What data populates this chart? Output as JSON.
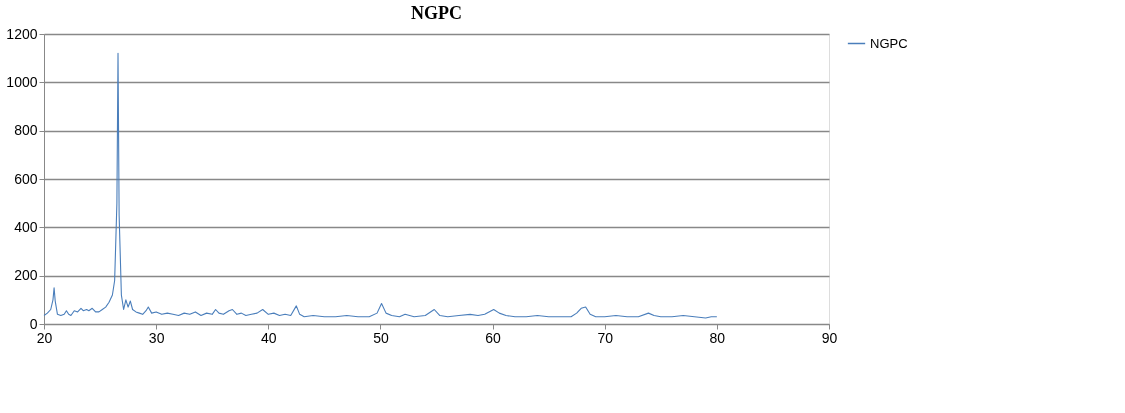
{
  "chart_data": {
    "type": "line",
    "title": "NGPC",
    "series": [
      {
        "name": "NGPC",
        "color": "#4a7ebb",
        "x": [
          20,
          20.3,
          20.6,
          20.8,
          20.9,
          21.0,
          21.2,
          21.5,
          21.8,
          22.0,
          22.2,
          22.4,
          22.7,
          23.0,
          23.3,
          23.5,
          23.8,
          24.0,
          24.3,
          24.6,
          24.9,
          25.2,
          25.5,
          25.8,
          26.1,
          26.3,
          26.5,
          26.6,
          26.7,
          26.9,
          27.1,
          27.3,
          27.5,
          27.7,
          27.9,
          28.2,
          28.5,
          28.8,
          29.1,
          29.3,
          29.6,
          30.0,
          30.5,
          31.0,
          31.5,
          32.0,
          32.5,
          33.0,
          33.5,
          34.0,
          34.5,
          35.0,
          35.3,
          35.6,
          36.0,
          36.5,
          36.8,
          37.2,
          37.6,
          38.0,
          38.5,
          39.0,
          39.5,
          40.0,
          40.5,
          41.0,
          41.5,
          42.0,
          42.5,
          42.8,
          43.2,
          44.0,
          45.0,
          46.0,
          47.0,
          48.0,
          49.0,
          49.7,
          50.1,
          50.5,
          51.0,
          51.7,
          52.2,
          53.0,
          54.0,
          54.8,
          55.3,
          56.0,
          57.0,
          58.0,
          58.7,
          59.3,
          60.1,
          60.6,
          61.2,
          62.0,
          63.0,
          64.0,
          65.0,
          66.0,
          67.0,
          67.5,
          67.9,
          68.3,
          68.7,
          69.2,
          70.0,
          71.0,
          72.0,
          73.0,
          73.9,
          74.4,
          75.0,
          76.0,
          77.0,
          78.0,
          79.0,
          79.5,
          80.0
        ],
        "values": [
          35,
          45,
          60,
          100,
          150,
          95,
          40,
          35,
          40,
          55,
          40,
          35,
          55,
          50,
          65,
          55,
          60,
          55,
          65,
          50,
          50,
          60,
          70,
          90,
          120,
          180,
          500,
          1120,
          450,
          120,
          60,
          100,
          70,
          95,
          60,
          50,
          45,
          40,
          55,
          70,
          45,
          50,
          40,
          45,
          40,
          35,
          45,
          40,
          50,
          35,
          45,
          40,
          60,
          45,
          40,
          55,
          60,
          40,
          45,
          35,
          40,
          45,
          60,
          40,
          45,
          35,
          40,
          35,
          75,
          40,
          30,
          35,
          30,
          30,
          35,
          30,
          30,
          45,
          85,
          45,
          35,
          30,
          40,
          30,
          35,
          60,
          35,
          30,
          35,
          40,
          35,
          40,
          60,
          45,
          35,
          30,
          30,
          35,
          30,
          30,
          30,
          45,
          65,
          70,
          40,
          30,
          30,
          35,
          30,
          30,
          45,
          35,
          30,
          30,
          35,
          30,
          25,
          30,
          30
        ]
      }
    ],
    "xlim": [
      20,
      90
    ],
    "xticks": [
      20,
      30,
      40,
      50,
      60,
      70,
      80,
      90
    ],
    "ylim": [
      0,
      1200
    ],
    "yticks": [
      0,
      200,
      400,
      600,
      800,
      1000,
      1200
    ],
    "grid": "y",
    "legend": "right"
  }
}
